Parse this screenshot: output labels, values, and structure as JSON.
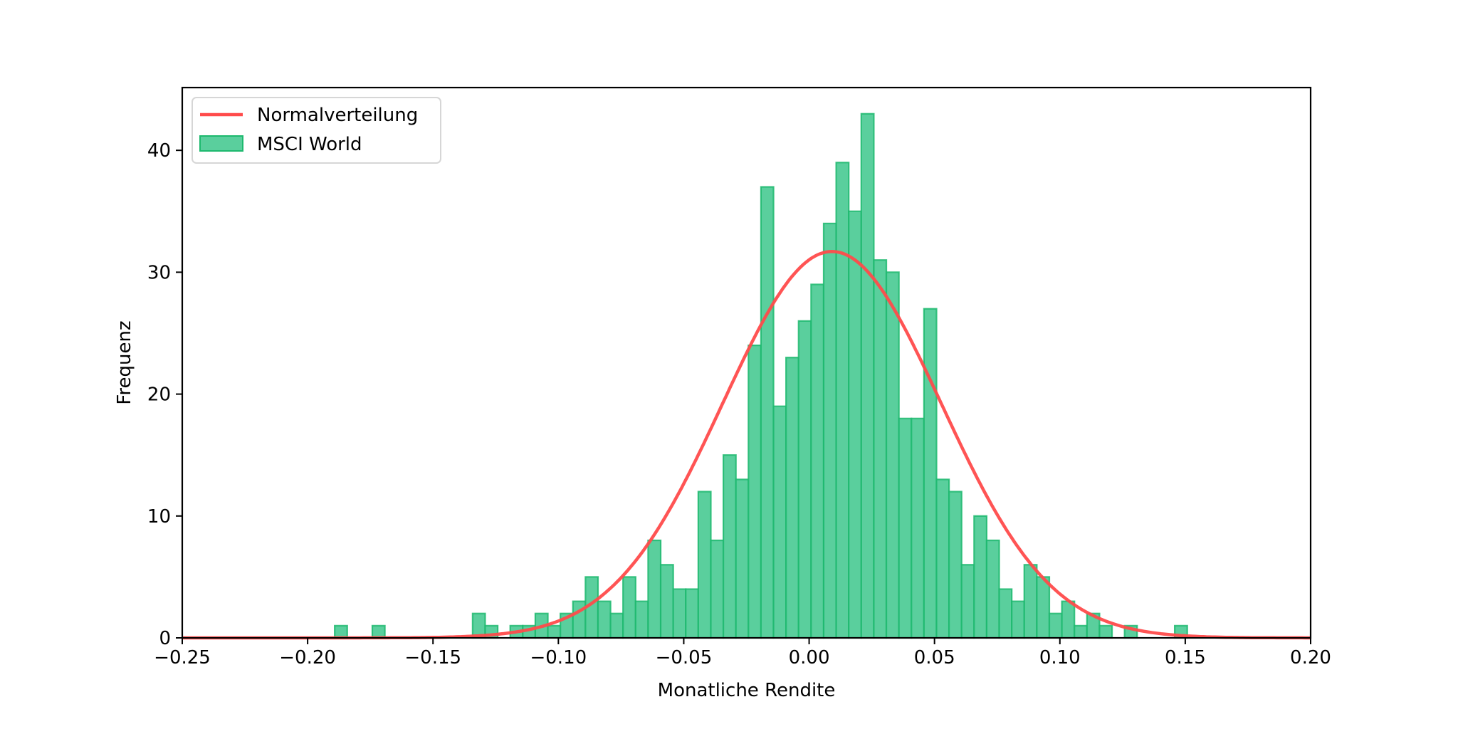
{
  "chart_data": {
    "type": "bar",
    "subtype": "histogram",
    "title": "",
    "xlabel": "Monatliche Rendite",
    "ylabel": "Frequenz",
    "xlim": [
      -0.25,
      0.2
    ],
    "ylim": [
      0,
      45.15
    ],
    "grid": false,
    "legend_position": "top-left",
    "x_ticks": [
      "-0.25",
      "-0.20",
      "-0.15",
      "-0.10",
      "-0.05",
      "0.00",
      "0.05",
      "0.10",
      "0.15",
      "0.20"
    ],
    "x_tick_labels": [
      "−0.25",
      "−0.20",
      "−0.15",
      "−0.10",
      "−0.05",
      "0.00",
      "0.05",
      "0.10",
      "0.15",
      "0.20"
    ],
    "y_ticks": [
      0,
      10,
      20,
      30,
      40
    ],
    "y_tick_labels": [
      "0",
      "10",
      "20",
      "30",
      "40"
    ],
    "series": [
      {
        "name": "MSCI World",
        "type": "histogram",
        "bin_start": -0.1892,
        "bin_width": 0.005,
        "counts": [
          1,
          0,
          0,
          1,
          0,
          0,
          0,
          0,
          0,
          0,
          0,
          2,
          1,
          0,
          1,
          1,
          2,
          1,
          2,
          3,
          5,
          3,
          2,
          5,
          3,
          8,
          6,
          4,
          4,
          12,
          8,
          15,
          13,
          24,
          37,
          19,
          23,
          26,
          29,
          34,
          39,
          35,
          43,
          31,
          30,
          18,
          18,
          27,
          13,
          12,
          6,
          10,
          8,
          4,
          3,
          6,
          5,
          2,
          3,
          1,
          2,
          1,
          0,
          1,
          0,
          0,
          0,
          1
        ],
        "fill_color": "#5ACF9D",
        "edge_color": "#1DB96E"
      },
      {
        "name": "Normalverteilung",
        "type": "line",
        "distribution": "normal",
        "mean": 0.0091,
        "std": 0.0436,
        "peak": 31.7,
        "color": "#FF4B4B"
      }
    ],
    "legend": [
      "Normalverteilung",
      "MSCI World"
    ]
  }
}
